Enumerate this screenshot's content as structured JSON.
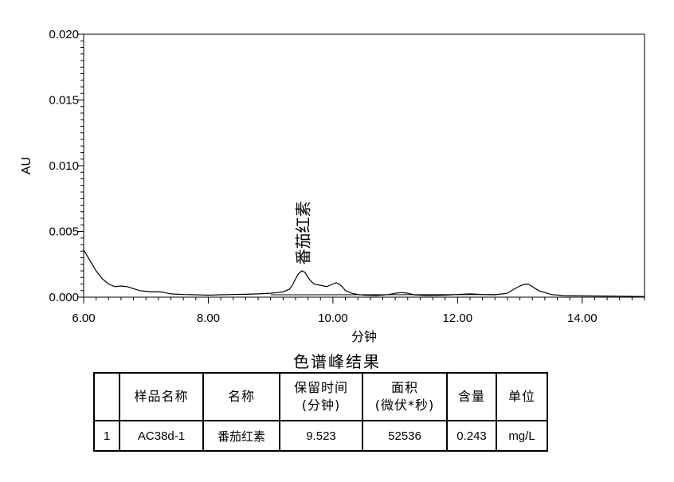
{
  "chart_data": {
    "type": "line",
    "xlabel": "分钟",
    "ylabel": "AU",
    "xlim": [
      6.0,
      15.0
    ],
    "ylim": [
      0.0,
      0.02
    ],
    "xticks": [
      "6.00",
      "8.00",
      "10.00",
      "12.00",
      "14.00"
    ],
    "xtick_values": [
      6,
      8,
      10,
      12,
      14
    ],
    "yticks": [
      "0.000",
      "0.005",
      "0.010",
      "0.015",
      "0.020"
    ],
    "ytick_values": [
      0,
      0.005,
      0.01,
      0.015,
      0.02
    ],
    "grid": false,
    "series": [
      {
        "x": [
          6.0,
          6.1,
          6.2,
          6.3,
          6.4,
          6.5,
          6.6,
          6.7,
          6.8,
          6.9,
          7.0,
          7.1,
          7.2,
          7.3,
          7.4,
          7.6,
          7.8,
          8.0,
          8.2,
          8.4,
          8.6,
          8.8,
          9.0,
          9.1,
          9.2,
          9.3,
          9.35,
          9.4,
          9.45,
          9.5,
          9.55,
          9.6,
          9.65,
          9.7,
          9.8,
          9.9,
          10.0,
          10.05,
          10.1,
          10.15,
          10.2,
          10.3,
          10.4,
          10.5,
          10.7,
          10.9,
          11.0,
          11.1,
          11.2,
          11.3,
          11.5,
          11.8,
          12.0,
          12.2,
          12.4,
          12.6,
          12.8,
          12.9,
          13.0,
          13.05,
          13.1,
          13.15,
          13.2,
          13.3,
          13.4,
          13.5,
          13.7,
          14.0,
          14.5,
          15.0
        ],
        "y": [
          0.0036,
          0.0028,
          0.002,
          0.0014,
          0.001,
          0.0008,
          0.00085,
          0.0008,
          0.00065,
          0.0005,
          0.00045,
          0.0004,
          0.00042,
          0.00035,
          0.00025,
          0.0002,
          0.00018,
          0.00015,
          0.00018,
          0.0002,
          0.00022,
          0.00025,
          0.0003,
          0.00035,
          0.0004,
          0.0006,
          0.0009,
          0.0014,
          0.0018,
          0.002,
          0.0019,
          0.0015,
          0.0012,
          0.001,
          0.0009,
          0.0008,
          0.001,
          0.0011,
          0.001,
          0.0008,
          0.0005,
          0.0003,
          0.0002,
          0.00015,
          0.00012,
          0.0002,
          0.0003,
          0.00035,
          0.0003,
          0.00018,
          0.00012,
          0.00015,
          0.0002,
          0.00025,
          0.0002,
          0.00018,
          0.0003,
          0.0006,
          0.00085,
          0.00095,
          0.001,
          0.00095,
          0.0008,
          0.0005,
          0.00035,
          0.0002,
          0.00012,
          0.0001,
          8e-05,
          5e-05
        ]
      }
    ],
    "baseline": {
      "x": [
        9.0,
        12.6
      ],
      "y": [
        0.00018,
        0.0002
      ]
    },
    "annotations": [
      {
        "text": "番茄红素",
        "x": 9.523,
        "y": 0.0021
      }
    ]
  },
  "results": {
    "title": "色谱峰结果",
    "headers": [
      "",
      "样品名称",
      "名称",
      "保留时间\n(分钟)",
      "面积\n(微伏*秒)",
      "含量",
      "单位"
    ],
    "rows": [
      [
        "1",
        "AC38d-1",
        "番茄红素",
        "9.523",
        "52536",
        "0.243",
        "mg/L"
      ]
    ]
  }
}
